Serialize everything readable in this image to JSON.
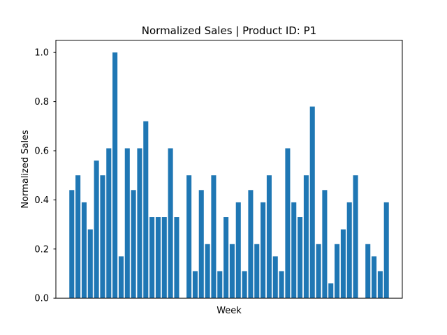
{
  "chart_data": {
    "type": "bar",
    "title": "Normalized Sales | Product ID: P1",
    "xlabel": "Week",
    "ylabel": "Normalized Sales",
    "ylim": [
      0,
      1.05
    ],
    "yticks": [
      0.0,
      0.2,
      0.4,
      0.6,
      0.8,
      1.0
    ],
    "ytick_labels": [
      "0.0",
      "0.2",
      "0.4",
      "0.6",
      "0.8",
      "1.0"
    ],
    "xticks_shown": false,
    "grid": false,
    "legend": "none",
    "bar_color": "#1f77b4",
    "values": [
      0.44,
      0.5,
      0.39,
      0.28,
      0.56,
      0.5,
      0.61,
      1.0,
      0.17,
      0.61,
      0.44,
      0.61,
      0.72,
      0.33,
      0.33,
      0.33,
      0.61,
      0.33,
      0.0,
      0.5,
      0.11,
      0.44,
      0.22,
      0.5,
      0.11,
      0.33,
      0.22,
      0.39,
      0.11,
      0.44,
      0.22,
      0.39,
      0.5,
      0.17,
      0.11,
      0.61,
      0.39,
      0.33,
      0.5,
      0.78,
      0.22,
      0.44,
      0.06,
      0.22,
      0.28,
      0.39,
      0.5,
      0.0,
      0.22,
      0.17,
      0.11,
      0.39
    ]
  }
}
